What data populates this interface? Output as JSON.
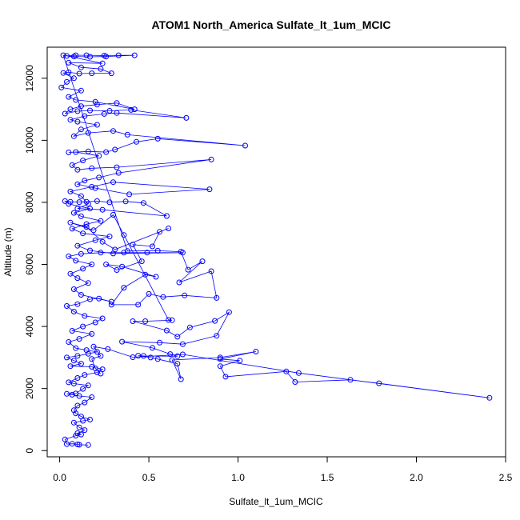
{
  "chart_data": {
    "type": "scatter",
    "title": "ATOM1 North_America Sulfate_lt_1um_MCIC",
    "xlabel": "Sulfate_lt_1um_MCIC",
    "ylabel": "Altitude (m)",
    "xlim": [
      -0.07,
      2.5
    ],
    "ylim": [
      -200,
      13000
    ],
    "x_ticks": [
      0,
      0.5,
      1,
      1.5,
      2,
      2.5
    ],
    "x_tick_labels": [
      "0.0",
      "0.5",
      "1.0",
      "1.5",
      "2.0",
      "2.5"
    ],
    "y_ticks": [
      0,
      2000,
      4000,
      6000,
      8000,
      10000,
      12000
    ],
    "y_tick_labels": [
      "0",
      "2000",
      "4000",
      "6000",
      "8000",
      "10000",
      "12000"
    ],
    "grid": false,
    "series": [
      {
        "style": "points-connected",
        "color": "#0000ff",
        "points": [
          [
            0.16,
            180
          ],
          [
            0.11,
            190
          ],
          [
            0.1,
            200
          ],
          [
            0.07,
            220
          ],
          [
            0.04,
            210
          ],
          [
            0.03,
            360
          ],
          [
            0.09,
            480
          ],
          [
            0.12,
            520
          ],
          [
            0.1,
            560
          ],
          [
            0.14,
            660
          ],
          [
            0.11,
            750
          ],
          [
            0.08,
            900
          ],
          [
            0.13,
            960
          ],
          [
            0.17,
            1000
          ],
          [
            0.12,
            1100
          ],
          [
            0.09,
            1200
          ],
          [
            0.08,
            1300
          ],
          [
            0.1,
            1450
          ],
          [
            0.14,
            1550
          ],
          [
            0.18,
            1720
          ],
          [
            0.11,
            1760
          ],
          [
            0.07,
            1800
          ],
          [
            0.04,
            1830
          ],
          [
            0.09,
            1840
          ],
          [
            0.13,
            1990
          ],
          [
            0.16,
            2100
          ],
          [
            0.08,
            2160
          ],
          [
            0.05,
            2200
          ],
          [
            0.1,
            2340
          ],
          [
            0.14,
            2440
          ],
          [
            0.21,
            2520
          ],
          [
            0.24,
            2620
          ],
          [
            0.18,
            2700
          ],
          [
            0.06,
            2720
          ],
          [
            0.12,
            2800
          ],
          [
            0.08,
            2900
          ],
          [
            0.04,
            3000
          ],
          [
            0.1,
            3050
          ],
          [
            0.16,
            3120
          ],
          [
            0.21,
            3180
          ],
          [
            0.15,
            3240
          ],
          [
            0.09,
            3300
          ],
          [
            0.05,
            3500
          ],
          [
            0.11,
            3600
          ],
          [
            0.18,
            3760
          ],
          [
            0.07,
            3860
          ],
          [
            0.13,
            4000
          ],
          [
            0.2,
            4130
          ],
          [
            0.24,
            4260
          ],
          [
            0.14,
            4340
          ],
          [
            0.08,
            4480
          ],
          [
            0.04,
            4660
          ],
          [
            0.1,
            4720
          ],
          [
            0.17,
            4880
          ],
          [
            0.22,
            4900
          ],
          [
            0.29,
            4800
          ],
          [
            0.12,
            5020
          ],
          [
            0.08,
            5200
          ],
          [
            0.16,
            5400
          ],
          [
            0.1,
            5560
          ],
          [
            0.06,
            5700
          ],
          [
            0.13,
            5860
          ],
          [
            0.18,
            6000
          ],
          [
            0.09,
            6120
          ],
          [
            0.05,
            6260
          ],
          [
            0.12,
            6340
          ],
          [
            0.23,
            6380
          ],
          [
            0.36,
            6380
          ],
          [
            0.49,
            6380
          ],
          [
            0.69,
            6380
          ],
          [
            0.3,
            6350
          ],
          [
            0.17,
            6450
          ],
          [
            0.1,
            6600
          ],
          [
            0.2,
            6780
          ],
          [
            0.28,
            6900
          ],
          [
            0.13,
            7000
          ],
          [
            0.07,
            7150
          ],
          [
            0.15,
            7300
          ],
          [
            0.23,
            7400
          ],
          [
            0.12,
            7550
          ],
          [
            0.08,
            7660
          ],
          [
            0.17,
            7800
          ],
          [
            0.05,
            7950
          ],
          [
            0.03,
            8040
          ],
          [
            0.06,
            8020
          ],
          [
            0.11,
            8010
          ],
          [
            0.15,
            8020
          ],
          [
            0.21,
            8040
          ],
          [
            0.28,
            8000
          ],
          [
            0.37,
            8030
          ],
          [
            0.47,
            7980
          ],
          [
            0.6,
            7560
          ],
          [
            0.24,
            7760
          ],
          [
            0.1,
            7800
          ],
          [
            0.16,
            7950
          ],
          [
            0.12,
            8200
          ],
          [
            0.06,
            8350
          ],
          [
            0.18,
            8500
          ],
          [
            0.3,
            8650
          ],
          [
            0.84,
            8420
          ],
          [
            0.39,
            8260
          ],
          [
            0.2,
            8460
          ],
          [
            0.1,
            8580
          ],
          [
            0.14,
            8700
          ],
          [
            0.22,
            8800
          ],
          [
            0.33,
            8950
          ],
          [
            0.85,
            9380
          ],
          [
            0.32,
            9130
          ],
          [
            0.18,
            9100
          ],
          [
            0.1,
            9050
          ],
          [
            0.07,
            9200
          ],
          [
            0.13,
            9350
          ],
          [
            0.22,
            9500
          ],
          [
            0.09,
            9620
          ],
          [
            0.05,
            9610
          ],
          [
            0.16,
            9640
          ],
          [
            0.26,
            9620
          ],
          [
            0.31,
            9700
          ],
          [
            0.43,
            9950
          ],
          [
            0.55,
            10050
          ],
          [
            1.04,
            9830
          ],
          [
            0.38,
            10180
          ],
          [
            0.3,
            10300
          ],
          [
            0.16,
            10240
          ],
          [
            0.08,
            10130
          ],
          [
            0.12,
            10350
          ],
          [
            0.21,
            10500
          ],
          [
            0.1,
            10600
          ],
          [
            0.06,
            10660
          ],
          [
            0.14,
            10780
          ],
          [
            0.25,
            10850
          ],
          [
            0.32,
            10880
          ],
          [
            0.71,
            10720
          ],
          [
            0.4,
            10980
          ],
          [
            0.28,
            10950
          ],
          [
            0.17,
            10960
          ],
          [
            0.1,
            10940
          ],
          [
            0.03,
            10860
          ],
          [
            0.06,
            11000
          ],
          [
            0.12,
            11100
          ],
          [
            0.21,
            11150
          ],
          [
            0.32,
            11200
          ],
          [
            0.42,
            11000
          ],
          [
            0.2,
            11240
          ],
          [
            0.09,
            11300
          ],
          [
            0.05,
            11400
          ],
          [
            0.12,
            11600
          ],
          [
            0.01,
            11700
          ],
          [
            0.04,
            11880
          ],
          [
            0.08,
            12000
          ],
          [
            0.02,
            12170
          ],
          [
            0.05,
            12190
          ],
          [
            0.11,
            12150
          ],
          [
            0.18,
            12160
          ],
          [
            0.29,
            12160
          ],
          [
            0.23,
            12300
          ],
          [
            0.12,
            12350
          ],
          [
            0.05,
            12500
          ],
          [
            0.24,
            12480
          ],
          [
            0.04,
            12720
          ],
          [
            0.09,
            12740
          ],
          [
            0.15,
            12740
          ],
          [
            0.25,
            12730
          ],
          [
            0.33,
            12740
          ],
          [
            0.42,
            12740
          ],
          [
            0.26,
            12700
          ],
          [
            0.17,
            12690
          ],
          [
            0.08,
            12700
          ],
          [
            0.02,
            12740
          ],
          [
            0.38,
            6430
          ],
          [
            0.55,
            6440
          ],
          [
            0.68,
            6410
          ],
          [
            0.72,
            5830
          ],
          [
            0.8,
            6100
          ],
          [
            0.67,
            5420
          ],
          [
            0.85,
            5780
          ],
          [
            0.88,
            4920
          ],
          [
            0.7,
            5000
          ],
          [
            0.58,
            4950
          ],
          [
            0.5,
            5050
          ],
          [
            0.44,
            4700
          ],
          [
            0.29,
            4700
          ],
          [
            0.36,
            5250
          ],
          [
            0.48,
            5670
          ],
          [
            0.54,
            5600
          ],
          [
            0.35,
            5930
          ],
          [
            0.26,
            6000
          ],
          [
            0.32,
            5820
          ],
          [
            0.46,
            6100
          ],
          [
            0.41,
            6640
          ],
          [
            0.52,
            6580
          ],
          [
            0.56,
            7050
          ],
          [
            0.61,
            7160
          ],
          [
            0.31,
            6480
          ],
          [
            0.24,
            6730
          ],
          [
            0.15,
            7210
          ],
          [
            0.06,
            7350
          ],
          [
            0.19,
            7100
          ],
          [
            0.3,
            7600
          ],
          [
            0.36,
            6950
          ],
          [
            0.61,
            4210
          ],
          [
            0.63,
            4200
          ],
          [
            0.48,
            4170
          ],
          [
            0.41,
            4170
          ],
          [
            0.6,
            3870
          ],
          [
            0.66,
            3670
          ],
          [
            0.73,
            3970
          ],
          [
            0.87,
            4180
          ],
          [
            0.95,
            4460
          ],
          [
            0.88,
            3700
          ],
          [
            0.69,
            3430
          ],
          [
            0.56,
            3480
          ],
          [
            0.35,
            3510
          ],
          [
            0.52,
            3310
          ],
          [
            0.62,
            3110
          ],
          [
            0.66,
            3040
          ],
          [
            0.47,
            3050
          ],
          [
            0.44,
            3060
          ],
          [
            0.51,
            3000
          ],
          [
            0.55,
            2950
          ],
          [
            0.66,
            2800
          ],
          [
            0.68,
            2300
          ],
          [
            0.63,
            2920
          ],
          [
            0.9,
            3000
          ],
          [
            1.1,
            3190
          ],
          [
            0.9,
            2950
          ],
          [
            1.01,
            2900
          ],
          [
            0.9,
            2720
          ],
          [
            0.93,
            2380
          ],
          [
            1.27,
            2550
          ],
          [
            1.32,
            2210
          ],
          [
            1.63,
            2280
          ],
          [
            1.79,
            2170
          ],
          [
            2.41,
            1700
          ],
          [
            1.34,
            2500
          ],
          [
            0.69,
            3100
          ],
          [
            0.41,
            3010
          ],
          [
            0.27,
            3270
          ],
          [
            0.19,
            3350
          ],
          [
            0.23,
            3050
          ],
          [
            0.18,
            2950
          ],
          [
            0.2,
            2650
          ],
          [
            0.23,
            2480
          ]
        ]
      }
    ]
  }
}
